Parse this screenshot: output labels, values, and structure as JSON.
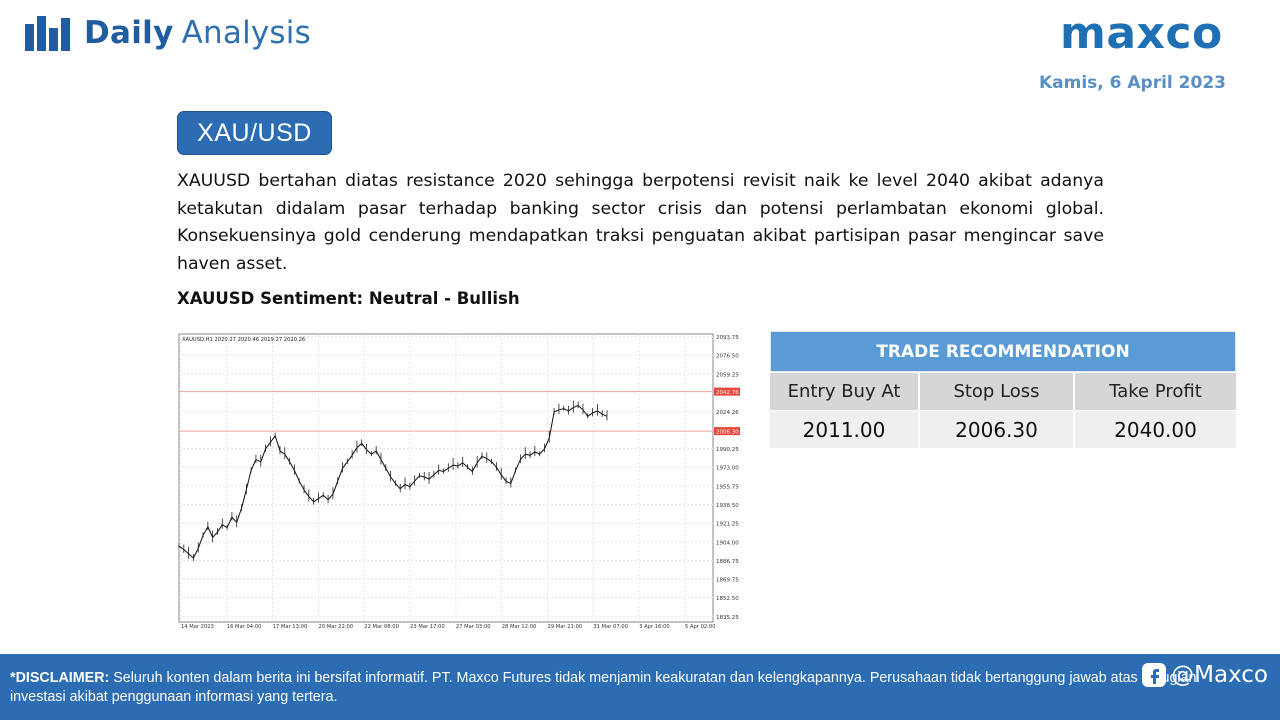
{
  "header": {
    "brand_bold": "Daily",
    "brand_light": "Analysis",
    "logo": "maxco",
    "date": "Kamis, 6 April 2023",
    "icons": [
      "bar-chart-icon"
    ]
  },
  "main": {
    "pair": "XAU/USD",
    "analysis": "XAUUSD bertahan diatas resistance 2020 sehingga berpotensi revisit naik ke level 2040 akibat adanya ketakutan didalam pasar terhadap banking sector crisis dan potensi perlambatan ekonomi global. Konsekuensinya gold cenderung mendapatkan traksi penguatan akibat partisipan pasar mengincar save haven asset.",
    "sentiment": "XAUUSD Sentiment: Neutral - Bullish"
  },
  "chart_data": {
    "type": "line",
    "title": "XAUUSD,H1  2020.27 2020.46 2019.27 2020.26",
    "xlabel": "",
    "ylabel": "",
    "x_ticks": [
      "14 Mar 2023",
      "16 Mar 04:00",
      "17 Mar 13:00",
      "20 Mar 22:00",
      "22 Mar 08:00",
      "23 Mar 17:00",
      "27 Mar 03:00",
      "28 Mar 12:00",
      "29 Mar 21:00",
      "31 Mar 07:00",
      "3 Apr 16:00",
      "5 Apr 02:00"
    ],
    "y_ticks": [
      "2093.75",
      "2076.50",
      "2059.25",
      "2042.76",
      "2024.26",
      "2006.30",
      "1990.25",
      "1973.00",
      "1955.75",
      "1938.50",
      "1921.25",
      "1904.00",
      "1886.75",
      "1869.75",
      "1852.50",
      "1835.25"
    ],
    "ylim": [
      1830,
      2096
    ],
    "hlines": [
      {
        "value": 2042.76,
        "label": "2042.76",
        "color": "#e8453c"
      },
      {
        "value": 2006.3,
        "label": "2006.30",
        "color": "#e8453c"
      }
    ],
    "current": {
      "value": 2020.26,
      "label": "2020.26"
    },
    "series": [
      {
        "values": [
          1900,
          1897,
          1893,
          1889,
          1898,
          1910,
          1918,
          1908,
          1913,
          1920,
          1917,
          1927,
          1922,
          1935,
          1952,
          1970,
          1980,
          1978,
          1990,
          1996,
          2002,
          1988,
          1985,
          1978,
          1970,
          1960,
          1952,
          1946,
          1941,
          1944,
          1947,
          1943,
          1948,
          1960,
          1972,
          1978,
          1984,
          1991,
          1995,
          1989,
          1985,
          1988,
          1980,
          1972,
          1964,
          1958,
          1953,
          1957,
          1955,
          1960,
          1965,
          1964,
          1962,
          1966,
          1970,
          1969,
          1972,
          1975,
          1974,
          1977,
          1973,
          1969,
          1977,
          1983,
          1981,
          1978,
          1973,
          1966,
          1960,
          1958,
          1970,
          1980,
          1985,
          1984,
          1987,
          1985,
          1990,
          2000,
          2024,
          2026,
          2027,
          2025,
          2028,
          2030,
          2026,
          2020,
          2023,
          2025,
          2022,
          2020
        ]
      }
    ],
    "grid": true
  },
  "trade": {
    "title": "TRADE RECOMMENDATION",
    "labels": [
      "Entry Buy At",
      "Stop Loss",
      "Take Profit"
    ],
    "values": [
      "2011.00",
      "2006.30",
      "2040.00"
    ]
  },
  "footer": {
    "disclaimer_label": "*DISCLAIMER:",
    "disclaimer_text": " Seluruh konten dalam berita ini bersifat informatif. PT. Maxco Futures tidak menjamin keakuratan dan kelengkapannya. Perusahaan tidak bertanggung jawab atas kerugian investasi akibat penggunaan informasi yang tertera.",
    "social_handle": "@Maxco",
    "icons": [
      "social-media-icon"
    ]
  }
}
